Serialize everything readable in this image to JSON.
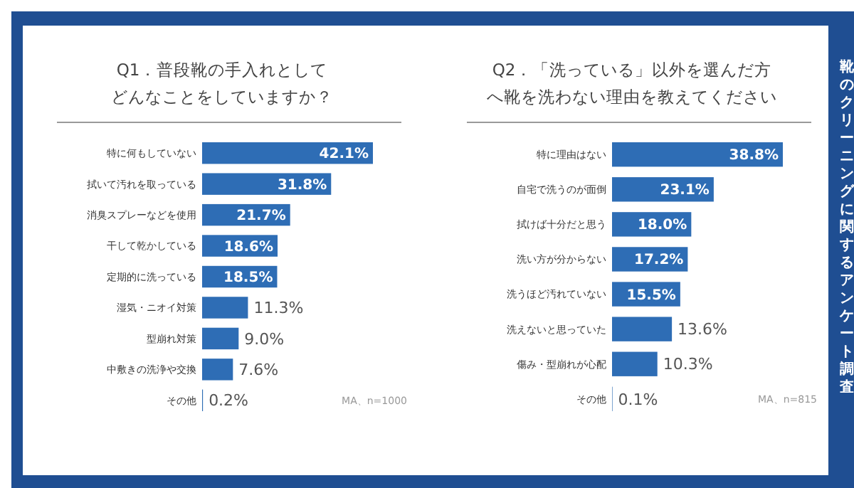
{
  "chart_data": [
    {
      "type": "bar",
      "orientation": "horizontal",
      "title": "Q1．普段靴の手入れとしてどんなことをしていますか？",
      "categories": [
        "特に何もしていない",
        "拭いて汚れを取っている",
        "消臭スプレーなどを使用",
        "干して乾かしている",
        "定期的に洗っている",
        "湿気・ニオイ対策",
        "型崩れ対策",
        "中敷きの洗浄や交換",
        "その他"
      ],
      "series": [
        {
          "color": "#2e6db5",
          "values": [
            42.1,
            31.8,
            21.7,
            18.6,
            18.5,
            11.3,
            9.0,
            7.6,
            0.2
          ],
          "value_labels": [
            "42.1%",
            "31.8%",
            "21.7%",
            "18.6%",
            "18.5%",
            "11.3%",
            "9.0%",
            "7.6%",
            "0.2%"
          ]
        }
      ],
      "tick_labels": "y",
      "annotations": [
        "MA、n=1000"
      ]
    },
    {
      "type": "bar",
      "orientation": "horizontal",
      "title": "Q2．「洗っている」以外を選んだ方へ靴を洗わない理由を教えてください",
      "categories": [
        "特に理由はない",
        "自宅で洗うのが面倒",
        "拭けば十分だと思う",
        "洗い方が分からない",
        "洗うほど汚れていない",
        "洗えないと思っていた",
        "傷み・型崩れが心配",
        "その他"
      ],
      "series": [
        {
          "color": "#2e6db5",
          "values": [
            38.8,
            23.1,
            18.0,
            17.2,
            15.5,
            13.6,
            10.3,
            0.1
          ],
          "value_labels": [
            "38.8%",
            "23.1%",
            "18.0%",
            "17.2%",
            "15.5%",
            "13.6%",
            "10.3%",
            "0.1%"
          ]
        }
      ],
      "tick_labels": "y",
      "annotations": [
        "MA、n=815",
        "靴のクリーニングに関するアンケート調査"
      ]
    }
  ]
}
